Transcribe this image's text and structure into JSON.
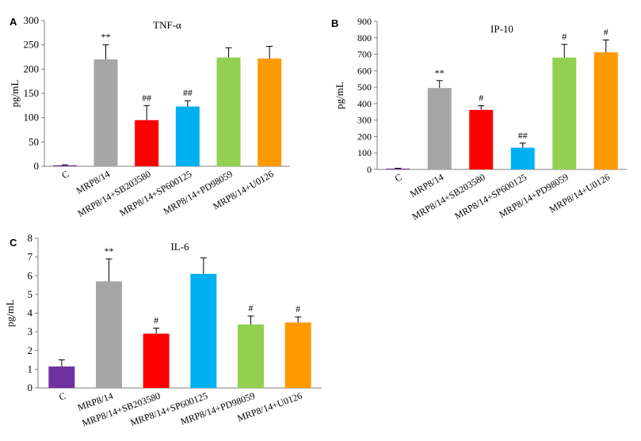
{
  "chart_data": [
    {
      "panel_label": "A",
      "type": "bar",
      "title": "TNF-α",
      "ylabel": "pg/mL",
      "ylim": [
        0,
        300
      ],
      "yticks": [
        0,
        50,
        100,
        150,
        200,
        250,
        300
      ],
      "categories": [
        "C",
        "MRP8/14",
        "MRP8/14+SB203580",
        "MRP8/14+SP600125",
        "MRP8/14+PD98059",
        "MRP8/14+U0126"
      ],
      "values": [
        2,
        220,
        95,
        123,
        224,
        222
      ],
      "errors": [
        1,
        30,
        30,
        12,
        20,
        25
      ],
      "annotations": [
        "",
        "**",
        "##",
        "##",
        "",
        ""
      ],
      "colors": [
        "#7030a0",
        "#a6a6a6",
        "#ff0000",
        "#00b0f0",
        "#92d050",
        "#ff9900"
      ]
    },
    {
      "panel_label": "B",
      "type": "bar",
      "title": "IP-10",
      "ylabel": "pg/mL",
      "ylim": [
        0,
        900
      ],
      "yticks": [
        0,
        100,
        200,
        300,
        400,
        500,
        600,
        700,
        800,
        900
      ],
      "categories": [
        "C",
        "MRP8/14",
        "MRP8/14+SB203580",
        "MRP8/14+SP600125",
        "MRP8/14+PD98059",
        "MRP8/14+U0126"
      ],
      "values": [
        5,
        495,
        362,
        132,
        680,
        712
      ],
      "errors": [
        2,
        45,
        25,
        28,
        80,
        75
      ],
      "annotations": [
        "",
        "**",
        "#",
        "##",
        "#",
        "#"
      ],
      "colors": [
        "#7030a0",
        "#a6a6a6",
        "#ff0000",
        "#00b0f0",
        "#92d050",
        "#ff9900"
      ]
    },
    {
      "panel_label": "C",
      "type": "bar",
      "title": "IL-6",
      "ylabel": "pg/mL",
      "ylim": [
        0,
        8
      ],
      "yticks": [
        0,
        1,
        2,
        3,
        4,
        5,
        6,
        7,
        8
      ],
      "categories": [
        "C",
        "MRP8/14",
        "MRP8/14+SB203580",
        "MRP8/14+SP600125",
        "MRP8/14+PD98059",
        "MRP8/14+U0126"
      ],
      "values": [
        1.15,
        5.7,
        2.9,
        6.1,
        3.4,
        3.5
      ],
      "errors": [
        0.35,
        1.2,
        0.3,
        0.85,
        0.45,
        0.3
      ],
      "annotations": [
        "",
        "**",
        "#",
        "",
        "#",
        "#"
      ],
      "colors": [
        "#7030a0",
        "#a6a6a6",
        "#ff0000",
        "#00b0f0",
        "#92d050",
        "#ff9900"
      ]
    }
  ]
}
